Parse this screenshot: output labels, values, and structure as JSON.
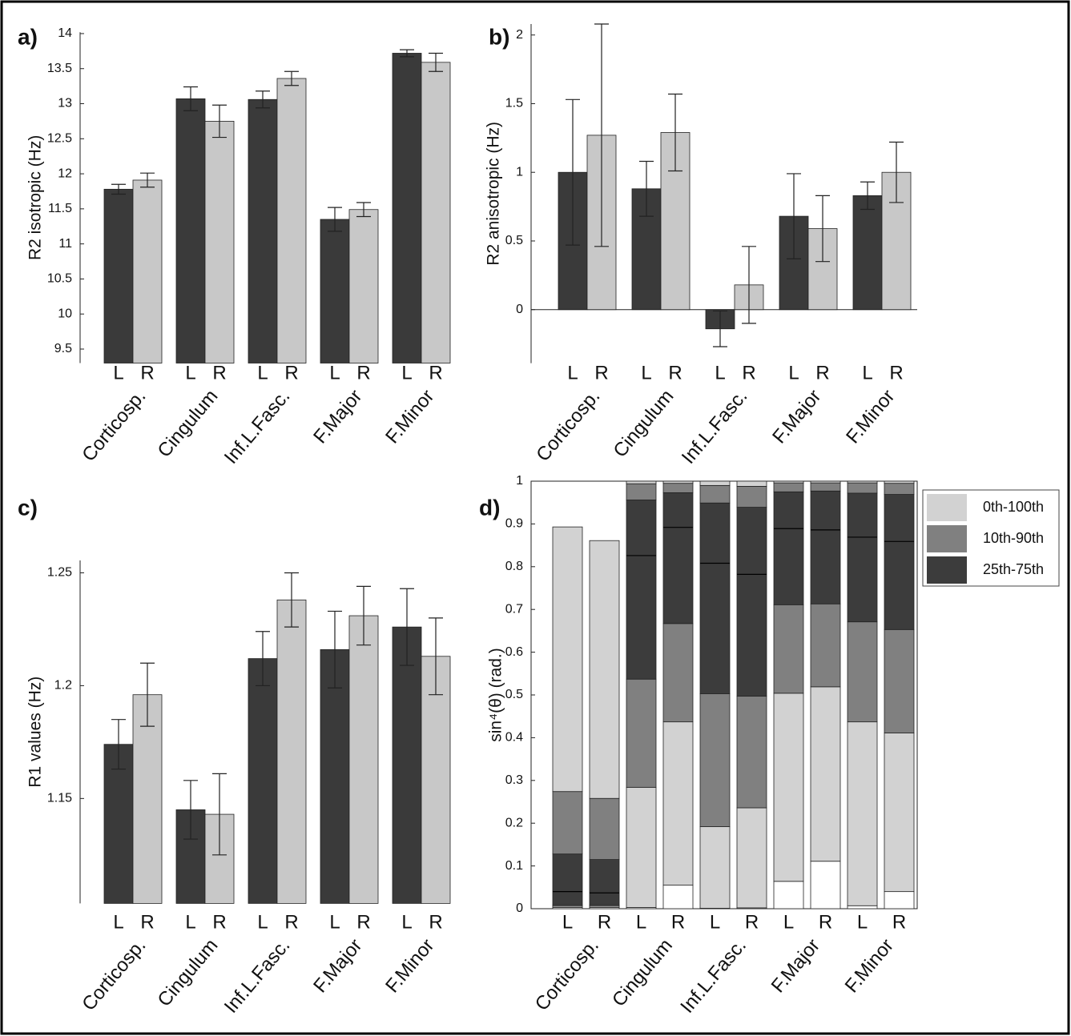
{
  "chart_data": [
    {
      "type": "bar",
      "title": "a)",
      "y_label": "R2 isotropic (Hz)",
      "categories": [
        "Corticosp.",
        "Cingulum",
        "Inf.L.Fasc.",
        "F.Major",
        "F.Minor"
      ],
      "series": [
        {
          "name": "L",
          "color": "#3a3a3a",
          "values": [
            11.78,
            13.07,
            13.06,
            11.35,
            13.72
          ],
          "errors": [
            0.07,
            0.17,
            0.12,
            0.17,
            0.05
          ]
        },
        {
          "name": "R",
          "color": "#c8c8c8",
          "values": [
            11.91,
            12.75,
            13.36,
            11.49,
            13.59
          ],
          "errors": [
            0.1,
            0.23,
            0.1,
            0.1,
            0.13
          ]
        }
      ],
      "ylim": [
        9.3,
        14.02
      ],
      "yticks": [
        9.5,
        10,
        10.5,
        11,
        11.5,
        12,
        12.5,
        13,
        13.5,
        14
      ]
    },
    {
      "type": "bar",
      "title": "b)",
      "y_label": "R2 anisotropic (Hz)",
      "categories": [
        "Corticosp.",
        "Cingulum",
        "Inf.L.Fasc.",
        "F.Major",
        "F.Minor"
      ],
      "series": [
        {
          "name": "L",
          "color": "#3a3a3a",
          "values": [
            1.0,
            0.88,
            -0.14,
            0.68,
            0.83
          ],
          "errors": [
            0.53,
            0.2,
            0.13,
            0.31,
            0.1
          ]
        },
        {
          "name": "R",
          "color": "#c8c8c8",
          "values": [
            1.27,
            1.29,
            0.18,
            0.59,
            1.0
          ],
          "errors": [
            0.81,
            0.28,
            0.28,
            0.24,
            0.22
          ]
        }
      ],
      "ylim": [
        -0.39,
        2.08
      ],
      "yticks": [
        0,
        0.5,
        1,
        1.5,
        2
      ]
    },
    {
      "type": "bar",
      "title": "c)",
      "y_label": "R1 values (Hz)",
      "categories": [
        "Corticosp.",
        "Cingulum",
        "Inf.L.Fasc.",
        "F.Major",
        "F.Minor"
      ],
      "series": [
        {
          "name": "L",
          "color": "#3a3a3a",
          "values": [
            1.174,
            1.145,
            1.212,
            1.216,
            1.226
          ],
          "errors": [
            0.011,
            0.013,
            0.012,
            0.017,
            0.017
          ]
        },
        {
          "name": "R",
          "color": "#c8c8c8",
          "values": [
            1.196,
            1.143,
            1.238,
            1.231,
            1.213
          ],
          "errors": [
            0.014,
            0.018,
            0.012,
            0.013,
            0.017
          ]
        }
      ],
      "ylim": [
        1.1035,
        1.2555
      ],
      "yticks": [
        1.15,
        1.2,
        1.25
      ]
    },
    {
      "type": "box",
      "title": "d)",
      "y_label": "sin⁴(θ) (rad.)",
      "categories": [
        "Corticosp.",
        "Cingulum",
        "Inf.L.Fasc.",
        "F.Major",
        "F.Minor"
      ],
      "legend": [
        {
          "name": "0th-100th",
          "color": "#d2d2d2"
        },
        {
          "name": "10th-90th",
          "color": "#808080"
        },
        {
          "name": "25th-75th",
          "color": "#3c3c3c"
        }
      ],
      "series": [
        {
          "name": "L",
          "values": [
            [
              0.003,
              0.006,
              0.009,
              0.04,
              0.128,
              0.274,
              0.893
            ],
            [
              0.003,
              0.284,
              0.537,
              0.826,
              0.956,
              0.994,
              1.0
            ],
            [
              0.001,
              0.192,
              0.503,
              0.808,
              0.949,
              0.99,
              1.0
            ],
            [
              0.064,
              0.504,
              0.711,
              0.889,
              0.975,
              0.996,
              1.0
            ],
            [
              0.007,
              0.437,
              0.671,
              0.869,
              0.972,
              0.996,
              1.0
            ]
          ]
        },
        {
          "name": "R",
          "values": [
            [
              0.003,
              0.006,
              0.009,
              0.037,
              0.115,
              0.258,
              0.861
            ],
            [
              0.055,
              0.437,
              0.667,
              0.892,
              0.973,
              0.995,
              1.0
            ],
            [
              0.002,
              0.236,
              0.497,
              0.782,
              0.939,
              0.988,
              1.0
            ],
            [
              0.111,
              0.519,
              0.713,
              0.886,
              0.977,
              0.996,
              1.0
            ],
            [
              0.04,
              0.411,
              0.653,
              0.859,
              0.969,
              0.995,
              1.0
            ]
          ]
        }
      ],
      "ylim": [
        0,
        1
      ],
      "yticks": [
        0,
        0.1,
        0.2,
        0.3,
        0.4,
        0.5,
        0.6,
        0.7,
        0.8,
        0.9,
        1
      ]
    }
  ]
}
